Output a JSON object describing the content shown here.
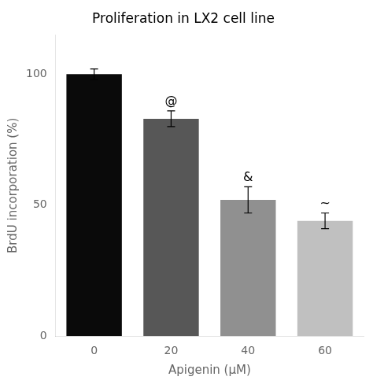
{
  "chart_data": {
    "type": "bar",
    "title": "Proliferation in LX2 cell line",
    "xlabel": "Apigenin (μM)",
    "ylabel": "BrdU incorporation (%)",
    "categories": [
      "0",
      "20",
      "40",
      "60"
    ],
    "values": [
      100,
      83,
      52,
      44
    ],
    "errors": [
      2.0,
      3.0,
      5.0,
      3.0
    ],
    "annotations": [
      null,
      "@",
      "&",
      "~"
    ],
    "colors": [
      "#0a0a0a",
      "#575757",
      "#909090",
      "#c0c0c0"
    ],
    "ylim": [
      0,
      115
    ],
    "yticks": [
      0,
      50,
      100
    ],
    "grid": false
  }
}
